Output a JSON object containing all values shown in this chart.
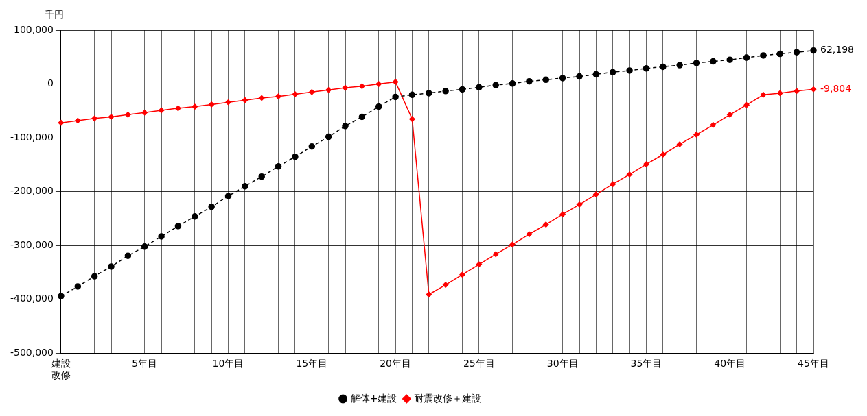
{
  "chart_data": {
    "type": "line",
    "ylabel": "千円",
    "categories": [
      "建設改修",
      null,
      null,
      null,
      null,
      "5年目",
      null,
      null,
      null,
      null,
      "10年目",
      null,
      null,
      null,
      null,
      "15年目",
      null,
      null,
      null,
      null,
      "20年目",
      null,
      null,
      null,
      null,
      "25年目",
      null,
      null,
      null,
      null,
      "30年目",
      null,
      null,
      null,
      null,
      "35年目",
      null,
      null,
      null,
      null,
      "40年目",
      null,
      null,
      null,
      null,
      "45年目"
    ],
    "series": [
      {
        "name": "解体+建設",
        "color": "#000000",
        "marker": "circle",
        "line_style": "dashed",
        "values": [
          -394000,
          -376000,
          -357000,
          -339000,
          -319000,
          -302000,
          -283000,
          -264000,
          -246000,
          -228000,
          -208000,
          -190000,
          -172000,
          -153000,
          -135000,
          -116000,
          -98000,
          -78000,
          -61000,
          -42000,
          -24000,
          -20000,
          -17000,
          -13000,
          -10000,
          -6000,
          -2000,
          1000,
          5000,
          8000,
          11000,
          14000,
          18000,
          22000,
          25000,
          29000,
          32000,
          35000,
          39000,
          42000,
          45000,
          49000,
          53000,
          56000,
          59000,
          62198
        ],
        "value_labels": [
          null,
          null,
          null,
          null,
          null,
          null,
          null,
          null,
          null,
          null,
          null,
          null,
          null,
          null,
          null,
          null,
          null,
          null,
          null,
          null,
          null,
          null,
          null,
          null,
          null,
          null,
          null,
          null,
          null,
          null,
          null,
          null,
          null,
          null,
          null,
          null,
          null,
          null,
          null,
          null,
          null,
          null,
          null,
          null,
          null,
          "62,198"
        ]
      },
      {
        "name": "耐震改修＋建設",
        "color": "#ff0000",
        "marker": "diamond",
        "line_style": "solid",
        "values": [
          -72000,
          -68000,
          -64000,
          -61000,
          -57000,
          -53000,
          -49000,
          -45000,
          -42000,
          -38000,
          -34000,
          -30000,
          -26000,
          -23000,
          -19000,
          -15000,
          -11000,
          -7000,
          -4000,
          0,
          4000,
          -65000,
          -391000,
          -373000,
          -354000,
          -335000,
          -316000,
          -298000,
          -279000,
          -261000,
          -242000,
          -224000,
          -205000,
          -186000,
          -168000,
          -149000,
          -131000,
          -112000,
          -94000,
          -76000,
          -57000,
          -39000,
          -20000,
          -17000,
          -13000,
          -9804
        ],
        "value_labels": [
          null,
          null,
          null,
          null,
          null,
          null,
          null,
          null,
          null,
          null,
          null,
          null,
          null,
          null,
          null,
          null,
          null,
          null,
          null,
          null,
          null,
          null,
          null,
          null,
          null,
          null,
          null,
          null,
          null,
          null,
          null,
          null,
          null,
          null,
          null,
          null,
          null,
          null,
          null,
          null,
          null,
          null,
          null,
          null,
          null,
          "-9,804"
        ]
      }
    ],
    "ylim": [
      -500000,
      100000
    ],
    "yticks": [
      {
        "value": -500000,
        "label": "-500,000"
      },
      {
        "value": -400000,
        "label": "-400,000"
      },
      {
        "value": -300000,
        "label": "-300,000"
      },
      {
        "value": -200000,
        "label": "-200,000"
      },
      {
        "value": -100000,
        "label": "-100,000"
      },
      {
        "value": 0,
        "label": "0"
      },
      {
        "value": 100000,
        "label": "100,000"
      }
    ],
    "grid": true,
    "legend": "bottom"
  }
}
